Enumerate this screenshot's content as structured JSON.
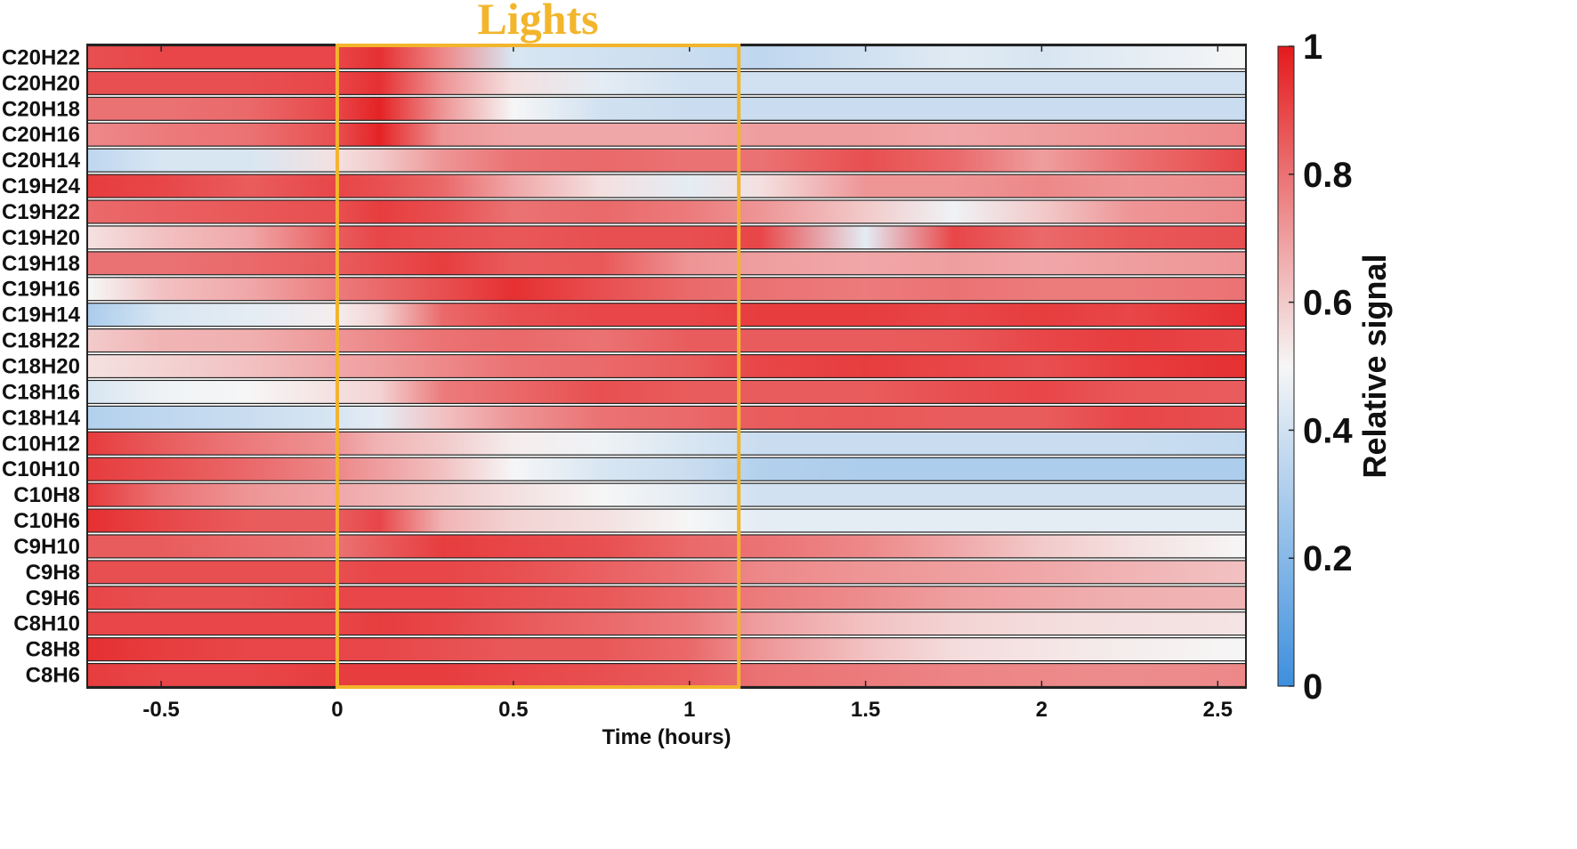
{
  "chart_data": {
    "type": "heatmap",
    "title": "",
    "xlabel": "Time (hours)",
    "colorbar_label": "Relative signal",
    "xlim": [
      -0.71,
      2.58
    ],
    "x_ticks": [
      "-0.5",
      "0",
      "0.5",
      "1",
      "1.5",
      "2",
      "2.5"
    ],
    "x_tick_values": [
      -0.5,
      0,
      0.5,
      1,
      1.5,
      2,
      2.5
    ],
    "colorbar_range": [
      0,
      1
    ],
    "colorbar_ticks": [
      "0",
      "0.2",
      "0.4",
      "0.6",
      "0.8",
      "1"
    ],
    "colorbar_tick_values": [
      0,
      0.2,
      0.4,
      0.6,
      0.8,
      1
    ],
    "colormap": {
      "low": "#3d8fde",
      "mid": "#f6f6f6",
      "high": "#e41a1c",
      "mid_value": 0.5
    },
    "annotation": {
      "label": "Lights",
      "x_start": 0,
      "x_end": 1.14,
      "color": "#f2b52c"
    },
    "sample_times": [
      -0.7,
      -0.5,
      -0.25,
      0,
      0.12,
      0.3,
      0.5,
      0.75,
      1.0,
      1.2,
      1.5,
      1.75,
      2.0,
      2.25,
      2.58
    ],
    "series": [
      {
        "name": "C20H22",
        "values": [
          0.88,
          0.9,
          0.9,
          0.9,
          0.95,
          0.75,
          0.42,
          0.4,
          0.38,
          0.35,
          0.4,
          0.44,
          0.42,
          0.45,
          0.5
        ]
      },
      {
        "name": "C20H20",
        "values": [
          0.88,
          0.88,
          0.88,
          0.9,
          0.95,
          0.72,
          0.55,
          0.45,
          0.4,
          0.4,
          0.4,
          0.4,
          0.4,
          0.4,
          0.4
        ]
      },
      {
        "name": "C20H18",
        "values": [
          0.8,
          0.8,
          0.82,
          0.9,
          0.98,
          0.72,
          0.5,
          0.4,
          0.38,
          0.38,
          0.38,
          0.38,
          0.38,
          0.38,
          0.38
        ]
      },
      {
        "name": "C20H16",
        "values": [
          0.75,
          0.78,
          0.8,
          0.88,
          0.98,
          0.72,
          0.68,
          0.68,
          0.68,
          0.7,
          0.7,
          0.68,
          0.7,
          0.72,
          0.75
        ]
      },
      {
        "name": "C20H14",
        "values": [
          0.35,
          0.42,
          0.42,
          0.55,
          0.6,
          0.72,
          0.8,
          0.82,
          0.8,
          0.8,
          0.88,
          0.82,
          0.7,
          0.8,
          0.9
        ]
      },
      {
        "name": "C19H24",
        "values": [
          0.92,
          0.9,
          0.85,
          0.9,
          0.88,
          0.82,
          0.68,
          0.55,
          0.45,
          0.55,
          0.72,
          0.72,
          0.75,
          0.72,
          0.75
        ]
      },
      {
        "name": "C19H22",
        "values": [
          0.82,
          0.84,
          0.86,
          0.88,
          0.92,
          0.88,
          0.8,
          0.82,
          0.78,
          0.72,
          0.6,
          0.48,
          0.6,
          0.72,
          0.75
        ]
      },
      {
        "name": "C19H20",
        "values": [
          0.55,
          0.62,
          0.68,
          0.85,
          0.9,
          0.88,
          0.86,
          0.88,
          0.88,
          0.9,
          0.45,
          0.9,
          0.82,
          0.86,
          0.88
        ]
      },
      {
        "name": "C19H18",
        "values": [
          0.8,
          0.8,
          0.82,
          0.85,
          0.88,
          0.92,
          0.85,
          0.86,
          0.72,
          0.7,
          0.68,
          0.7,
          0.68,
          0.7,
          0.72
        ]
      },
      {
        "name": "C19H16",
        "values": [
          0.5,
          0.62,
          0.68,
          0.78,
          0.82,
          0.88,
          0.95,
          0.88,
          0.82,
          0.8,
          0.78,
          0.8,
          0.78,
          0.78,
          0.8
        ]
      },
      {
        "name": "C19H14",
        "values": [
          0.3,
          0.42,
          0.45,
          0.52,
          0.58,
          0.82,
          0.88,
          0.9,
          0.9,
          0.92,
          0.92,
          0.9,
          0.92,
          0.9,
          0.95
        ]
      },
      {
        "name": "C18H22",
        "values": [
          0.6,
          0.65,
          0.66,
          0.72,
          0.75,
          0.8,
          0.82,
          0.8,
          0.85,
          0.85,
          0.85,
          0.86,
          0.9,
          0.92,
          0.9
        ]
      },
      {
        "name": "C18H20",
        "values": [
          0.55,
          0.58,
          0.62,
          0.68,
          0.7,
          0.75,
          0.8,
          0.82,
          0.85,
          0.9,
          0.92,
          0.9,
          0.88,
          0.92,
          0.95
        ]
      },
      {
        "name": "C18H16",
        "values": [
          0.42,
          0.48,
          0.5,
          0.55,
          0.58,
          0.78,
          0.82,
          0.88,
          0.85,
          0.85,
          0.85,
          0.88,
          0.9,
          0.86,
          0.85
        ]
      },
      {
        "name": "C18H14",
        "values": [
          0.32,
          0.35,
          0.38,
          0.42,
          0.45,
          0.62,
          0.72,
          0.8,
          0.82,
          0.85,
          0.86,
          0.85,
          0.85,
          0.9,
          0.88
        ]
      },
      {
        "name": "C10H12",
        "values": [
          0.92,
          0.85,
          0.78,
          0.72,
          0.65,
          0.6,
          0.52,
          0.48,
          0.42,
          0.38,
          0.38,
          0.38,
          0.38,
          0.38,
          0.36
        ]
      },
      {
        "name": "C10H10",
        "values": [
          0.92,
          0.88,
          0.82,
          0.75,
          0.7,
          0.62,
          0.5,
          0.42,
          0.38,
          0.32,
          0.3,
          0.3,
          0.3,
          0.3,
          0.3
        ]
      },
      {
        "name": "C10H8",
        "values": [
          0.92,
          0.8,
          0.72,
          0.68,
          0.65,
          0.6,
          0.55,
          0.5,
          0.45,
          0.4,
          0.4,
          0.4,
          0.4,
          0.4,
          0.4
        ]
      },
      {
        "name": "C10H6",
        "values": [
          0.95,
          0.9,
          0.85,
          0.85,
          0.9,
          0.65,
          0.58,
          0.55,
          0.5,
          0.45,
          0.45,
          0.45,
          0.45,
          0.45,
          0.45
        ]
      },
      {
        "name": "C9H10",
        "values": [
          0.85,
          0.85,
          0.82,
          0.8,
          0.85,
          0.92,
          0.9,
          0.88,
          0.82,
          0.8,
          0.75,
          0.68,
          0.6,
          0.55,
          0.5
        ]
      },
      {
        "name": "C9H8",
        "values": [
          0.88,
          0.88,
          0.88,
          0.88,
          0.9,
          0.9,
          0.88,
          0.84,
          0.8,
          0.75,
          0.72,
          0.7,
          0.68,
          0.65,
          0.62
        ]
      },
      {
        "name": "C9H6",
        "values": [
          0.9,
          0.88,
          0.88,
          0.9,
          0.9,
          0.9,
          0.88,
          0.86,
          0.82,
          0.78,
          0.74,
          0.7,
          0.68,
          0.66,
          0.65
        ]
      },
      {
        "name": "C8H10",
        "values": [
          0.9,
          0.9,
          0.9,
          0.9,
          0.92,
          0.9,
          0.86,
          0.82,
          0.78,
          0.7,
          0.62,
          0.58,
          0.56,
          0.55,
          0.54
        ]
      },
      {
        "name": "C8H8",
        "values": [
          0.95,
          0.92,
          0.9,
          0.9,
          0.9,
          0.88,
          0.86,
          0.86,
          0.82,
          0.72,
          0.62,
          0.56,
          0.54,
          0.52,
          0.5
        ]
      },
      {
        "name": "C8H6",
        "values": [
          0.92,
          0.9,
          0.9,
          0.92,
          0.92,
          0.92,
          0.9,
          0.88,
          0.85,
          0.8,
          0.78,
          0.76,
          0.75,
          0.74,
          0.75
        ]
      }
    ]
  }
}
